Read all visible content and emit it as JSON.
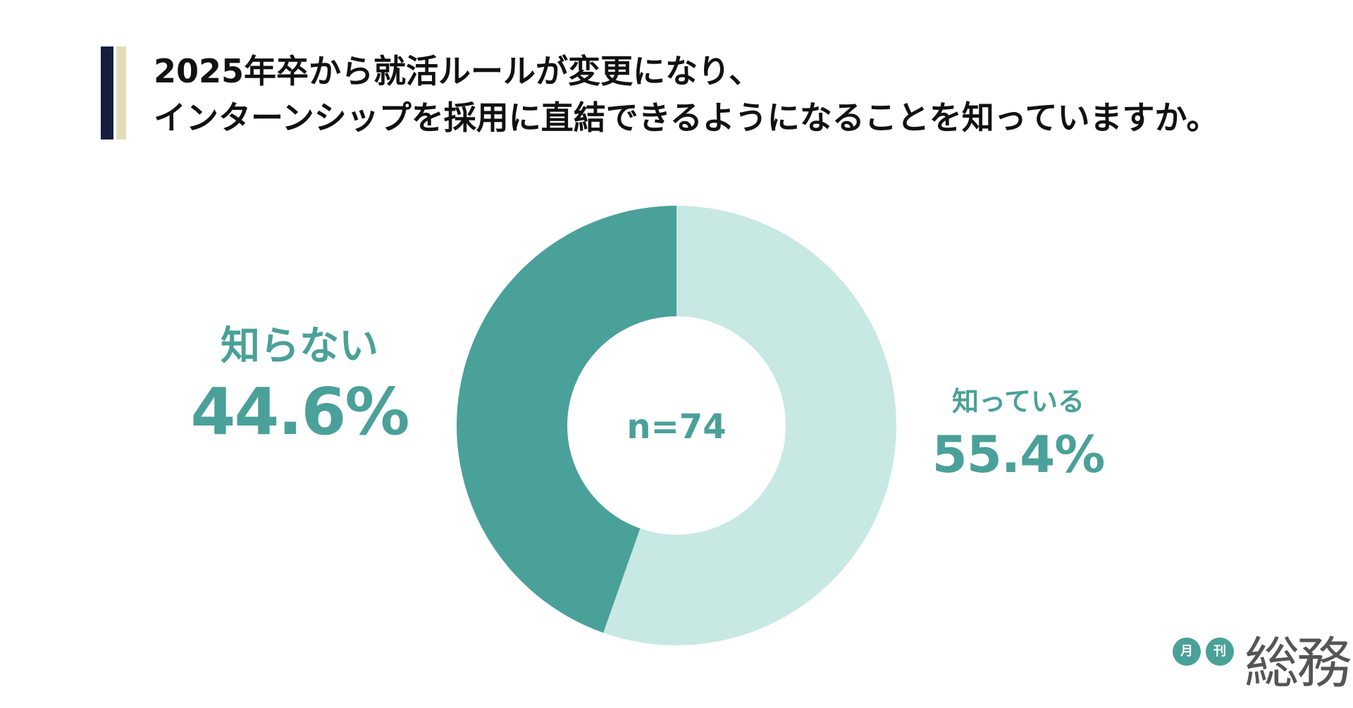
{
  "title": {
    "line1": "2025年卒から就活ルールが変更になり、",
    "line2": "インターンシップを採用に直結できるようになることを知っていますか。"
  },
  "colors": {
    "accent_dark": "#161d3f",
    "accent_light": "#e3dcb8",
    "known": "#c8e8e4",
    "unknown": "#4aa199",
    "label": "#4aa199"
  },
  "chart_data": {
    "type": "pie",
    "title": "2025年卒から就活ルールが変更になり、インターンシップを採用に直結できるようになることを知っていますか。",
    "center_label": "n=74",
    "slices": [
      {
        "label": "知っている",
        "value": 55.4,
        "value_label": "55.4%",
        "color": "#c8e8e4"
      },
      {
        "label": "知らない",
        "value": 44.6,
        "value_label": "44.6%",
        "color": "#4aa199"
      }
    ]
  },
  "logo": {
    "circle1": "月",
    "circle2": "刊",
    "text": "総務"
  }
}
